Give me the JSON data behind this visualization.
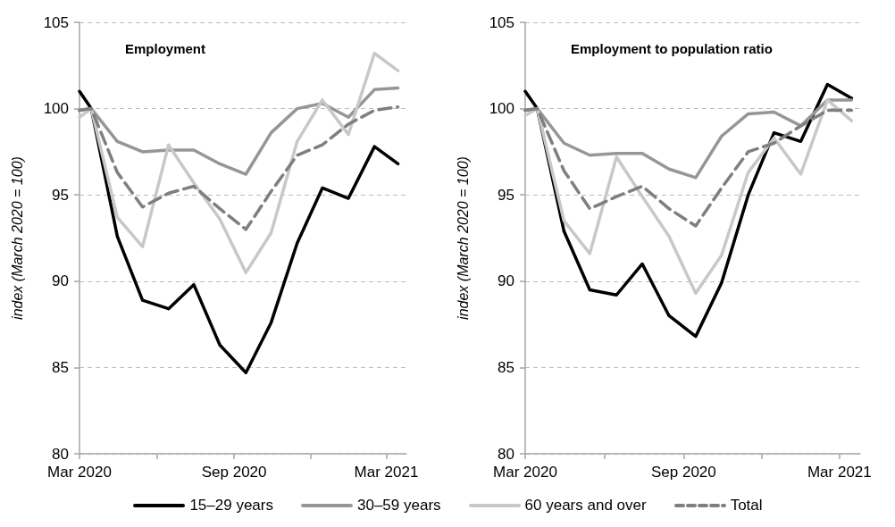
{
  "chart_data": [
    {
      "type": "line",
      "title": "Employment",
      "ylabel": "index (March 2020 = 100)",
      "x": [
        "2020-03-01",
        "2020-03-15",
        "2020-04-15",
        "2020-05-15",
        "2020-06-15",
        "2020-07-15",
        "2020-08-15",
        "2020-09-15",
        "2020-10-15",
        "2020-11-15",
        "2020-12-15",
        "2021-01-15",
        "2021-02-15",
        "2021-03-15"
      ],
      "series": [
        {
          "name": "15–29 years",
          "color": "#000000",
          "line_style": "solid",
          "values": [
            101.0,
            100,
            92.6,
            88.9,
            88.4,
            89.8,
            86.3,
            84.7,
            87.6,
            92.2,
            95.4,
            94.8,
            97.8,
            96.8
          ]
        },
        {
          "name": "30–59 years",
          "color": "#969696",
          "line_style": "solid",
          "values": [
            99.9,
            100,
            98.1,
            97.5,
            97.6,
            97.6,
            96.8,
            96.2,
            98.6,
            100.0,
            100.3,
            99.5,
            101.1,
            101.2
          ]
        },
        {
          "name": "60 years and over",
          "color": "#c8c8c8",
          "line_style": "solid",
          "values": [
            99.5,
            100,
            93.7,
            92.0,
            97.9,
            95.7,
            93.6,
            90.5,
            92.8,
            98.1,
            100.5,
            98.5,
            103.2,
            102.2
          ]
        },
        {
          "name": "Total",
          "color": "#7f7f7f",
          "line_style": "dashed",
          "values": [
            99.9,
            100,
            96.3,
            94.3,
            95.1,
            95.5,
            94.2,
            93.0,
            95.2,
            97.3,
            97.9,
            99.1,
            99.9,
            100.1
          ]
        }
      ],
      "xlim": [
        "2020-03-01",
        "2021-03-25"
      ],
      "xticks": [
        {
          "value": "2020-03-01",
          "label": "Mar 2020"
        },
        {
          "value": "2020-06-01",
          "label": null
        },
        {
          "value": "2020-09-01",
          "label": "Sep 2020"
        },
        {
          "value": "2020-12-01",
          "label": null
        },
        {
          "value": "2021-03-01",
          "label": "Mar 2021"
        }
      ],
      "ylim": [
        80,
        105
      ],
      "yticks": [
        80,
        85,
        90,
        95,
        100,
        105
      ],
      "grid": "y",
      "marker": "none",
      "legend": "bottom"
    },
    {
      "type": "line",
      "title": "Employment to population ratio",
      "ylabel": "index (March 2020 = 100)",
      "x": [
        "2020-03-01",
        "2020-03-15",
        "2020-04-15",
        "2020-05-15",
        "2020-06-15",
        "2020-07-15",
        "2020-08-15",
        "2020-09-15",
        "2020-10-15",
        "2020-11-15",
        "2020-12-15",
        "2021-01-15",
        "2021-02-15",
        "2021-03-15"
      ],
      "series": [
        {
          "color": "#000000",
          "line_style": "solid",
          "values": [
            101.0,
            100,
            92.9,
            89.5,
            89.2,
            91.0,
            88.0,
            86.8,
            89.9,
            95.0,
            98.6,
            98.1,
            101.4,
            100.6
          ]
        },
        {
          "color": "#969696",
          "line_style": "solid",
          "values": [
            99.9,
            100,
            98.0,
            97.3,
            97.4,
            97.4,
            96.5,
            96.0,
            98.4,
            99.7,
            99.8,
            99.0,
            100.5,
            100.5
          ]
        },
        {
          "color": "#c8c8c8",
          "line_style": "solid",
          "values": [
            99.6,
            100,
            93.5,
            91.6,
            97.2,
            94.9,
            92.6,
            89.3,
            91.5,
            96.3,
            98.3,
            96.2,
            100.5,
            99.3
          ]
        },
        {
          "color": "#7f7f7f",
          "line_style": "dashed",
          "values": [
            99.9,
            100,
            96.4,
            94.2,
            94.9,
            95.5,
            94.2,
            93.2,
            95.4,
            97.5,
            98.0,
            99.0,
            99.9,
            99.9
          ]
        }
      ],
      "xlim": [
        "2020-03-01",
        "2021-03-25"
      ],
      "xticks": [
        {
          "value": "2020-03-01",
          "label": "Mar 2020"
        },
        {
          "value": "2020-06-01",
          "label": null
        },
        {
          "value": "2020-09-01",
          "label": "Sep 2020"
        },
        {
          "value": "2020-12-01",
          "label": null
        },
        {
          "value": "2021-03-01",
          "label": "Mar 2021"
        }
      ],
      "ylim": [
        80,
        105
      ],
      "yticks": [
        80,
        85,
        90,
        95,
        100,
        105
      ],
      "grid": "y",
      "marker": "none"
    }
  ]
}
